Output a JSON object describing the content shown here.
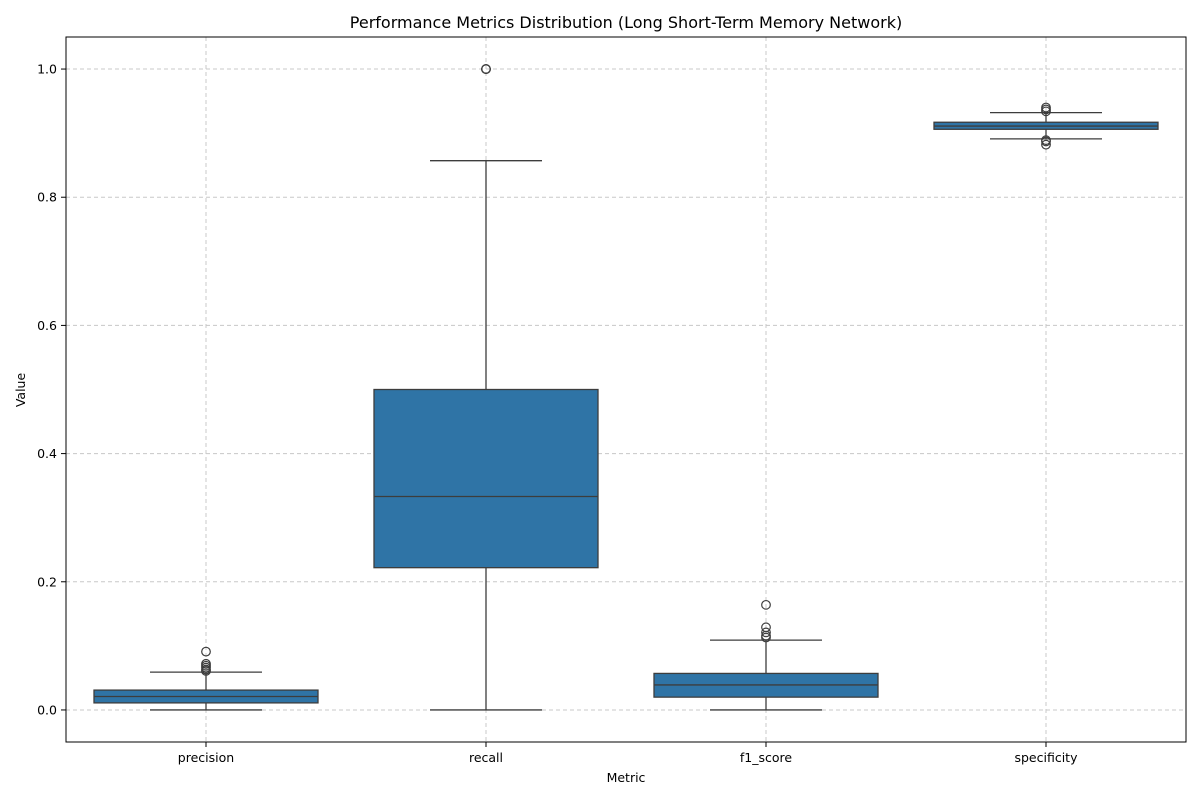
{
  "chart_data": {
    "type": "box",
    "title": "Performance Metrics Distribution (Long Short-Term Memory Network)",
    "xlabel": "Metric",
    "ylabel": "Value",
    "ylim": [
      -0.05,
      1.05
    ],
    "yticks": [
      0.0,
      0.2,
      0.4,
      0.6,
      0.8,
      1.0
    ],
    "ytick_labels": [
      "0.0",
      "0.2",
      "0.4",
      "0.6",
      "0.8",
      "1.0"
    ],
    "grid": true,
    "box_color": "#2f74a6",
    "categories": [
      "precision",
      "recall",
      "f1_score",
      "specificity"
    ],
    "boxes": [
      {
        "label": "precision",
        "whislo": 0.0,
        "q1": 0.011,
        "med": 0.021,
        "q3": 0.031,
        "whishi": 0.059,
        "fliers": [
          0.061,
          0.063,
          0.066,
          0.069,
          0.072,
          0.091
        ]
      },
      {
        "label": "recall",
        "whislo": 0.0,
        "q1": 0.222,
        "med": 0.333,
        "q3": 0.5,
        "whishi": 0.857,
        "fliers": [
          1.0,
          1.0,
          1.0
        ]
      },
      {
        "label": "f1_score",
        "whislo": 0.0,
        "q1": 0.02,
        "med": 0.039,
        "q3": 0.057,
        "whishi": 0.109,
        "fliers": [
          0.113,
          0.116,
          0.121,
          0.129,
          0.164
        ]
      },
      {
        "label": "specificity",
        "whislo": 0.891,
        "q1": 0.906,
        "med": 0.911,
        "q3": 0.917,
        "whishi": 0.932,
        "fliers": [
          0.882,
          0.887,
          0.889,
          0.934,
          0.937,
          0.94
        ]
      }
    ]
  }
}
